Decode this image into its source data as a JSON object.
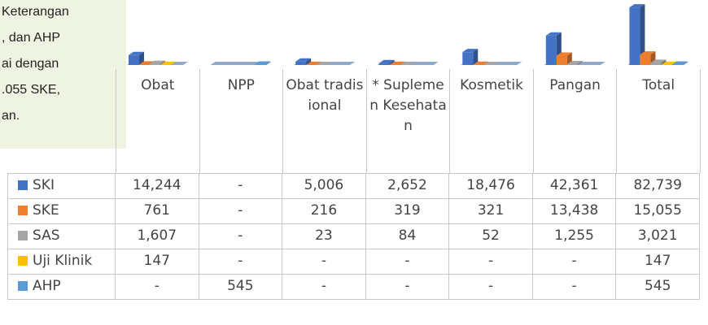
{
  "note_box": {
    "lines": [
      "Keterangan",
      ", dan AHP",
      "ai dengan",
      ".055 SKE,",
      "an."
    ]
  },
  "chart_data": {
    "type": "bar3d",
    "categories": [
      "Obat",
      "NPP",
      "Obat tradisional",
      "* Suplemen Kesehatan",
      "Kosmetik",
      "Pangan",
      "Total"
    ],
    "ylim": [
      0,
      84000
    ],
    "series": [
      {
        "name": "SKI",
        "color": "#4472c4",
        "values": [
          14244,
          null,
          5006,
          2652,
          18476,
          42361,
          82739
        ],
        "value_labels": [
          "14,244",
          "-",
          "5,006",
          "2,652",
          "18,476",
          "42,361",
          "82,739"
        ]
      },
      {
        "name": "SKE",
        "color": "#ed7d31",
        "values": [
          761,
          null,
          216,
          319,
          321,
          13438,
          15055
        ],
        "value_labels": [
          "761",
          "-",
          "216",
          "319",
          "321",
          "13,438",
          "15,055"
        ]
      },
      {
        "name": "SAS",
        "color": "#a5a5a5",
        "values": [
          1607,
          null,
          23,
          84,
          52,
          1255,
          3021
        ],
        "value_labels": [
          "1,607",
          "-",
          "23",
          "84",
          "52",
          "1,255",
          "3,021"
        ]
      },
      {
        "name": "Uji Klinik",
        "color": "#ffc000",
        "values": [
          147,
          null,
          null,
          null,
          null,
          null,
          147
        ],
        "value_labels": [
          "147",
          "-",
          "-",
          "-",
          "-",
          "-",
          "147"
        ]
      },
      {
        "name": "AHP",
        "color": "#5b9bd5",
        "values": [
          null,
          545,
          null,
          null,
          null,
          null,
          545
        ],
        "value_labels": [
          "-",
          "545",
          "-",
          "-",
          "-",
          "-",
          "545"
        ]
      }
    ]
  }
}
